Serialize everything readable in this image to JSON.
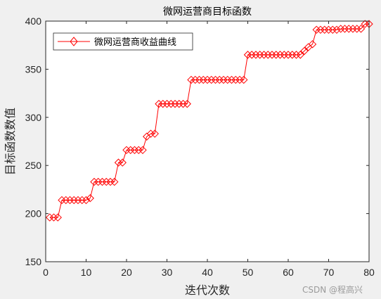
{
  "chart_data": {
    "type": "line",
    "title": "微网运营商目标函数",
    "xlabel": "迭代次数",
    "ylabel": "目标函数数值",
    "xlim": [
      0,
      80
    ],
    "ylim": [
      150,
      400
    ],
    "xticks": [
      0,
      10,
      20,
      30,
      40,
      50,
      60,
      70,
      80
    ],
    "yticks": [
      150,
      200,
      250,
      300,
      350,
      400
    ],
    "grid": false,
    "legend_position": "top-left",
    "series": [
      {
        "name": "微网运营商收益曲线",
        "color": "#ff0000",
        "marker": "diamond",
        "x": [
          1,
          2,
          3,
          4,
          5,
          6,
          7,
          8,
          9,
          10,
          11,
          12,
          13,
          14,
          15,
          16,
          17,
          18,
          19,
          20,
          21,
          22,
          23,
          24,
          25,
          26,
          27,
          28,
          29,
          30,
          31,
          32,
          33,
          34,
          35,
          36,
          37,
          38,
          39,
          40,
          41,
          42,
          43,
          44,
          45,
          46,
          47,
          48,
          49,
          50,
          51,
          52,
          53,
          54,
          55,
          56,
          57,
          58,
          59,
          60,
          61,
          62,
          63,
          64,
          65,
          66,
          67,
          68,
          69,
          70,
          71,
          72,
          73,
          74,
          75,
          76,
          77,
          78,
          79,
          80
        ],
        "y": [
          196,
          196,
          196,
          214,
          214,
          214,
          214,
          214,
          214,
          214,
          216,
          233,
          233,
          233,
          233,
          233,
          233,
          253,
          253,
          266,
          266,
          266,
          266,
          266,
          280,
          283,
          283,
          314,
          314,
          314,
          314,
          314,
          314,
          314,
          314,
          339,
          339,
          339,
          339,
          339,
          339,
          339,
          339,
          339,
          339,
          339,
          339,
          339,
          339,
          365,
          365,
          365,
          365,
          365,
          365,
          365,
          365,
          365,
          365,
          365,
          365,
          365,
          365,
          369,
          373,
          376,
          391,
          391,
          391,
          391,
          391,
          391,
          392,
          392,
          392,
          392,
          392,
          392,
          397,
          397
        ]
      }
    ]
  },
  "watermark": "CSDN @程高兴"
}
